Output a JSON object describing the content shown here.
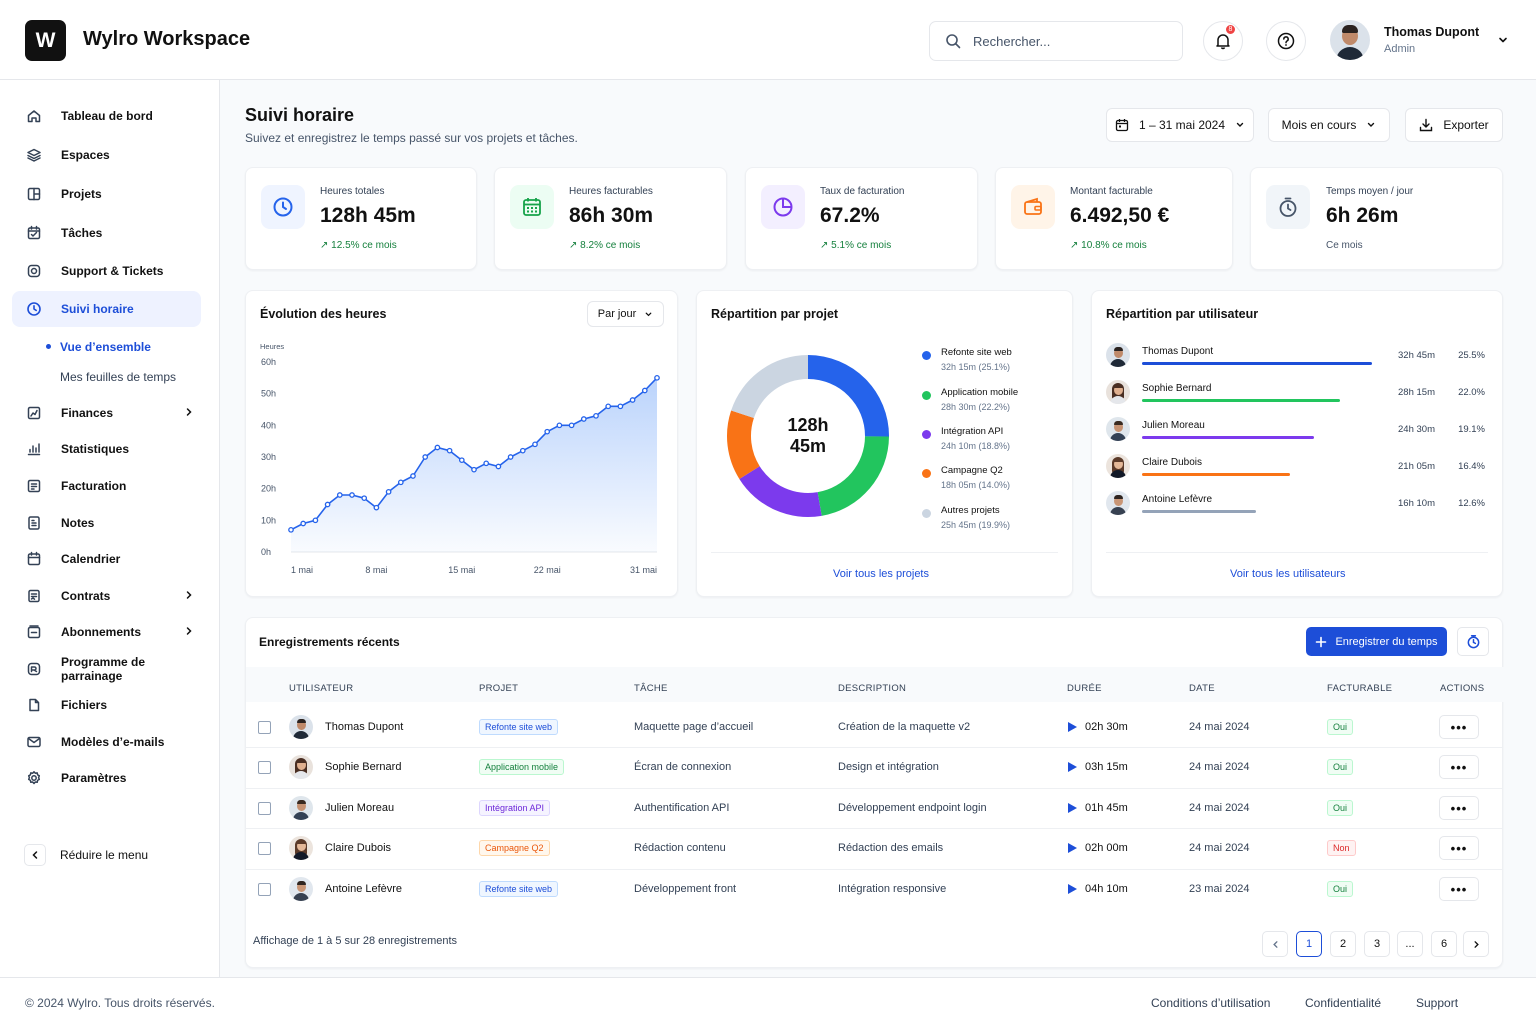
{
  "app": {
    "logo_letter": "W",
    "name": "Wylro Workspace"
  },
  "header": {
    "search_placeholder": "Rechercher...",
    "notification_count": "8",
    "user": {
      "name": "Thomas Dupont",
      "role": "Admin"
    }
  },
  "sidebar": {
    "items": [
      {
        "label": "Tableau de bord",
        "icon": "home-icon"
      },
      {
        "label": "Espaces",
        "icon": "layers-icon"
      },
      {
        "label": "Projets",
        "icon": "projects-icon"
      },
      {
        "label": "Tâches",
        "icon": "tasks-icon"
      },
      {
        "label": "Support & Tickets",
        "icon": "support-icon"
      },
      {
        "label": "Suivi horaire",
        "icon": "clock-icon"
      },
      {
        "label": "Finances",
        "icon": "finance-icon"
      },
      {
        "label": "Statistiques",
        "icon": "chart-icon"
      },
      {
        "label": "Facturation",
        "icon": "invoice-icon"
      },
      {
        "label": "Notes",
        "icon": "notes-icon"
      },
      {
        "label": "Calendrier",
        "icon": "calendar-icon"
      },
      {
        "label": "Contrats",
        "icon": "contract-icon"
      },
      {
        "label": "Abonnements",
        "icon": "subscription-icon"
      },
      {
        "label": "Programme de parrainage",
        "icon": "referral-icon"
      },
      {
        "label": "Fichiers",
        "icon": "files-icon"
      },
      {
        "label": "Modèles d’e-mails",
        "icon": "mail-icon"
      },
      {
        "label": "Paramètres",
        "icon": "settings-icon"
      }
    ],
    "subitems": [
      {
        "label": "Vue d’ensemble"
      },
      {
        "label": "Mes feuilles de temps"
      }
    ],
    "collapse_label": "Réduire le menu"
  },
  "page": {
    "title": "Suivi horaire",
    "subtitle": "Suivez et enregistrez le temps passé sur vos projets et tâches.",
    "date_range": "1 – 31 mai 2024",
    "period": "Mois en cours",
    "export": "Exporter"
  },
  "kpis": [
    {
      "label": "Heures totales",
      "value": "128h 45m",
      "trend": "12.5% ce mois",
      "color": "#2563eb"
    },
    {
      "label": "Heures facturables",
      "value": "86h 30m",
      "trend": "8.2% ce mois",
      "color": "#16a34a"
    },
    {
      "label": "Taux de facturation",
      "value": "67.2%",
      "trend": "5.1% ce mois",
      "color": "#7c3aed"
    },
    {
      "label": "Montant facturable",
      "value": "6.492,50 €",
      "trend": "10.8% ce mois",
      "color": "#f97316"
    },
    {
      "label": "Temps moyen / jour",
      "value": "6h 26m",
      "note": "Ce mois",
      "color": "#475569"
    }
  ],
  "evolution": {
    "title": "Évolution des heures",
    "granularity": "Par jour"
  },
  "projects_card": {
    "title": "Répartition par projet",
    "center_line1": "128h",
    "center_line2": "45m",
    "link": "Voir tous les projets"
  },
  "users_card": {
    "title": "Répartition par utilisateur",
    "link": "Voir tous les utilisateurs",
    "users": [
      {
        "name": "Thomas Dupont",
        "time": "32h 45m",
        "pct": "25.5%",
        "share": 0.255,
        "color": "#1d4ed8"
      },
      {
        "name": "Sophie Bernard",
        "time": "28h 15m",
        "pct": "22.0%",
        "share": 0.22,
        "color": "#22c55e"
      },
      {
        "name": "Julien Moreau",
        "time": "24h 30m",
        "pct": "19.1%",
        "share": 0.191,
        "color": "#7c3aed"
      },
      {
        "name": "Claire Dubois",
        "time": "21h 05m",
        "pct": "16.4%",
        "share": 0.164,
        "color": "#f97316"
      },
      {
        "name": "Antoine Lefèvre",
        "time": "16h 10m",
        "pct": "12.6%",
        "share": 0.126,
        "color": "#94a3b8"
      }
    ]
  },
  "recent": {
    "title": "Enregistrements récents",
    "record_button": "Enregistrer du temps",
    "columns": [
      "UTILISATEUR",
      "PROJET",
      "TÂCHE",
      "DESCRIPTION",
      "DURÉE",
      "DATE",
      "FACTURABLE",
      "ACTIONS"
    ],
    "rows": [
      {
        "user": "Thomas Dupont",
        "project": "Refonte site web",
        "task": "Maquette page d’accueil",
        "desc": "Création de la maquette v2",
        "duration": "02h 30m",
        "date": "24 mai 2024",
        "billable": "Oui",
        "actions": "•••"
      },
      {
        "user": "Sophie Bernard",
        "project": "Application mobile",
        "task": "Écran de connexion",
        "desc": "Design et intégration",
        "duration": "03h 15m",
        "date": "24 mai 2024",
        "billable": "Oui",
        "actions": "•••"
      },
      {
        "user": "Julien Moreau",
        "project": "Intégration API",
        "task": "Authentification API",
        "desc": "Développement endpoint login",
        "duration": "01h 45m",
        "date": "24 mai 2024",
        "billable": "Oui",
        "actions": "•••"
      },
      {
        "user": "Claire Dubois",
        "project": "Campagne Q2",
        "task": "Rédaction contenu",
        "desc": "Rédaction des emails",
        "duration": "02h 00m",
        "date": "24 mai 2024",
        "billable": "Non",
        "actions": "•••"
      },
      {
        "user": "Antoine Lefèvre",
        "project": "Refonte site web",
        "task": "Développement front",
        "desc": "Intégration responsive",
        "duration": "04h 10m",
        "date": "23 mai 2024",
        "billable": "Oui",
        "actions": "•••"
      }
    ],
    "summary": "Affichage de 1 à 5 sur 28 enregistrements",
    "pages": [
      "1",
      "2",
      "3",
      "...",
      "6"
    ],
    "active_page": "1"
  },
  "footer": {
    "copyright": "© 2024 Wylro. Tous droits réservés.",
    "links": [
      "Conditions d’utilisation",
      "Confidentialité",
      "Support"
    ]
  },
  "chart_data": [
    {
      "type": "area",
      "ylabel": "Heures",
      "x_tick_labels": [
        "1 mai",
        "8 mai",
        "15 mai",
        "22 mai",
        "31 mai"
      ],
      "y_tick_labels": [
        "0h",
        "10h",
        "20h",
        "30h",
        "40h",
        "50h",
        "60h"
      ],
      "ylim": [
        0,
        60
      ],
      "x": [
        1,
        2,
        3,
        4,
        5,
        6,
        7,
        8,
        9,
        10,
        11,
        12,
        13,
        14,
        15,
        16,
        17,
        18,
        19,
        20,
        21,
        22,
        23,
        24,
        25,
        26,
        27,
        28,
        29,
        30,
        31
      ],
      "values": [
        7,
        9,
        10,
        15,
        18,
        18,
        17,
        14,
        19,
        22,
        24,
        30,
        33,
        32,
        29,
        26,
        28,
        27,
        30,
        32,
        34,
        38,
        40,
        40,
        42,
        43,
        46,
        46,
        48,
        51,
        55
      ],
      "grid": false,
      "legend": "none",
      "color": "#2563eb"
    },
    {
      "type": "pie",
      "labels": [
        "Refonte site web",
        "Application mobile",
        "Intégration API",
        "Campagne Q2",
        "Autres projets"
      ],
      "values": [
        25.1,
        22.2,
        18.8,
        14.0,
        19.9
      ],
      "value_labels": [
        "32h 15m (25.1%)",
        "28h 30m (22.2%)",
        "24h 10m (18.8%)",
        "18h 05m (14.0%)",
        "25h 45m (19.9%)"
      ],
      "colors": [
        "#2563eb",
        "#22c55e",
        "#7c3aed",
        "#f97316",
        "#cbd5e1"
      ],
      "donut": true,
      "legend": "right"
    }
  ]
}
